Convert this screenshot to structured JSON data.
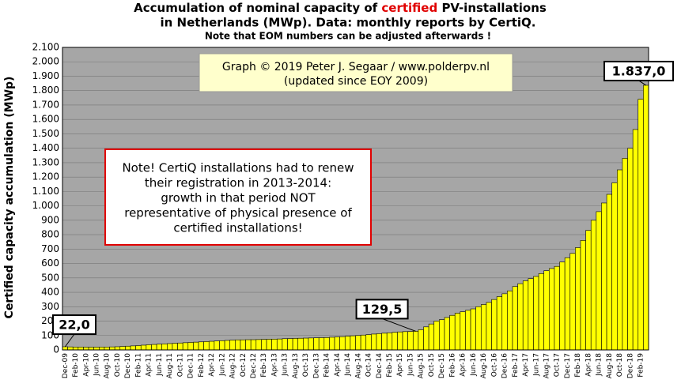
{
  "chart_data": {
    "type": "bar",
    "title": {
      "line1_a": "Accumulation  of nominal  capacity of ",
      "line1_b": "certified",
      "line1_c": " PV-installations",
      "line2": "in Netherlands (MWp). Data: monthly  reports by CertiQ.",
      "note": "Note that EOM numbers can be adjusted afterwards  !"
    },
    "y_label": "Certified capacity accumulation  (MWp)",
    "annotations": [
      "Graph © 2019 Peter J. Segaar / www.polderpv.nl",
      "(updated since EOY 2009)",
      "Note! CertiQ installations had to renew",
      "their registration in 2013-2014:",
      "growth in that period NOT",
      "representative of physical presence of",
      "certified installations!"
    ],
    "categories": [
      "Dec-09",
      null,
      "Feb-10",
      null,
      "Apr-10",
      null,
      "Jun-10",
      null,
      "Aug-10",
      null,
      "Oct-10",
      null,
      "Dec-10",
      null,
      "Feb-11",
      null,
      "Apr-11",
      null,
      "Jun-11",
      null,
      "Aug-11",
      null,
      "Oct-11",
      null,
      "Dec-11",
      null,
      "Feb-12",
      null,
      "Apr-12",
      null,
      "Jun-12",
      null,
      "Aug-12",
      null,
      "Oct-12",
      null,
      "Dec-12",
      null,
      "Feb-13",
      null,
      "Apr-13",
      null,
      "Jun-13",
      null,
      "Aug-13",
      null,
      "Oct-13",
      null,
      "Dec-13",
      null,
      "Feb-14",
      null,
      "Apr-14",
      null,
      "Jun-14",
      null,
      "Aug-14",
      null,
      "Oct-14",
      null,
      "Dec-14",
      null,
      "Feb-15",
      null,
      "Apr-15",
      null,
      "Jun-15",
      null,
      "Aug-15",
      null,
      "Oct-15",
      null,
      "Dec-15",
      null,
      "Feb-16",
      null,
      "Apr-16",
      null,
      "Jun-16",
      null,
      "Aug-16",
      null,
      "Oct-16",
      null,
      "Dec-16",
      null,
      "Feb-17",
      null,
      "Apr-17",
      null,
      "Jun-17",
      null,
      "Aug-17",
      null,
      "Oct-17",
      null,
      "Dec-17",
      null,
      "Feb-18",
      null,
      "Apr-18",
      null,
      "Jun-18",
      null,
      "Aug-18",
      null,
      "Oct-18",
      null,
      "Dec-18",
      null,
      "Feb-19",
      null
    ],
    "values": [
      22,
      21,
      20,
      20,
      19,
      19,
      19,
      20,
      20,
      21,
      22,
      24,
      26,
      28,
      30,
      33,
      36,
      38,
      40,
      42,
      44,
      46,
      48,
      50,
      52,
      54,
      56,
      58,
      60,
      62,
      64,
      66,
      68,
      70,
      70,
      71,
      71,
      72,
      73,
      74,
      75,
      76,
      78,
      79,
      80,
      81,
      82,
      83,
      84,
      85,
      86,
      88,
      90,
      92,
      95,
      98,
      100,
      103,
      106,
      110,
      113,
      116,
      119,
      122,
      125,
      127,
      128,
      129.5,
      140,
      160,
      180,
      200,
      210,
      225,
      240,
      255,
      265,
      275,
      285,
      300,
      315,
      330,
      350,
      370,
      390,
      410,
      440,
      460,
      480,
      495,
      510,
      530,
      550,
      565,
      580,
      610,
      640,
      670,
      710,
      760,
      830,
      900,
      960,
      1020,
      1080,
      1160,
      1250,
      1330,
      1400,
      1530,
      1740,
      1837
    ],
    "value_labels": [
      "22,0",
      null,
      null,
      null,
      null,
      null,
      null,
      null,
      null,
      null,
      null,
      null,
      null,
      null,
      null,
      null,
      null,
      null,
      null,
      null,
      null,
      null,
      null,
      null,
      null,
      null,
      null,
      null,
      null,
      null,
      null,
      null,
      null,
      null,
      null,
      null,
      null,
      null,
      null,
      null,
      null,
      null,
      null,
      null,
      null,
      null,
      null,
      null,
      null,
      null,
      null,
      null,
      null,
      null,
      null,
      null,
      null,
      null,
      null,
      null,
      null,
      null,
      null,
      null,
      null,
      null,
      null,
      "129,5",
      null,
      null,
      null,
      null,
      null,
      null,
      null,
      null,
      null,
      null,
      null,
      null,
      null,
      null,
      null,
      null,
      null,
      null,
      null,
      null,
      null,
      null,
      null,
      null,
      null,
      null,
      null,
      null,
      null,
      null,
      null,
      null,
      null,
      null,
      null,
      null,
      null,
      null,
      null,
      null,
      null,
      null,
      null,
      "1.837,0"
    ],
    "color": "#ffff00",
    "background": "#a6a6a6",
    "ylim": [
      0,
      2100
    ],
    "yticks": [
      0,
      100,
      200,
      300,
      400,
      500,
      600,
      700,
      800,
      900,
      {
        "value": 1000,
        "label": "1.000"
      },
      {
        "value": 1100,
        "label": "1.100"
      },
      {
        "value": 1200,
        "label": "1.200"
      },
      {
        "value": 1300,
        "label": "1.300"
      },
      {
        "value": 1400,
        "label": "1.400"
      },
      {
        "value": 1500,
        "label": "1.500"
      },
      {
        "value": 1600,
        "label": "1.600"
      },
      {
        "value": 1700,
        "label": "1.700"
      },
      {
        "value": 1800,
        "label": "1.800"
      },
      {
        "value": 1900,
        "label": "1.900"
      },
      {
        "value": 2000,
        "label": "2.000"
      },
      {
        "value": 2100,
        "label": "2.100"
      }
    ],
    "grid": true
  }
}
